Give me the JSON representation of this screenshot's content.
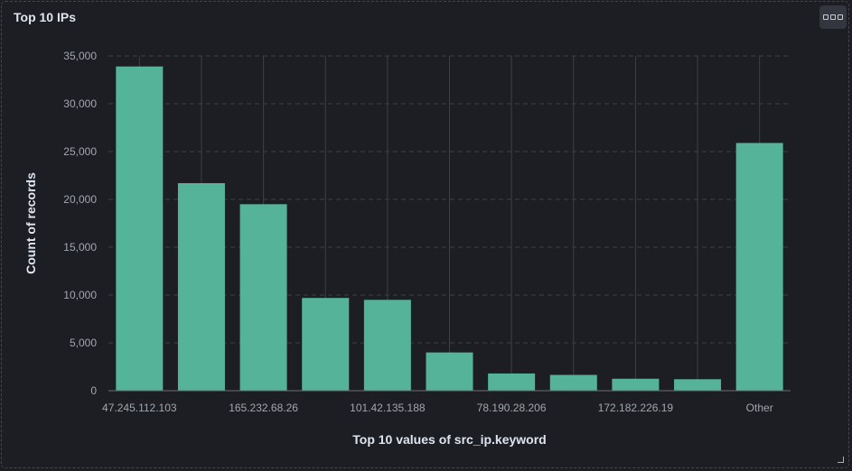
{
  "panel": {
    "title": "Top 10 IPs",
    "menu_icon": "ellipsis-icon",
    "resize_icon": "resize-corner-icon"
  },
  "colors": {
    "bar": "#54b399",
    "background": "#1d1e24",
    "grid": "#3d3f47"
  },
  "chart_data": {
    "type": "bar",
    "categories": [
      "47.245.112.103",
      "",
      "165.232.68.26",
      "",
      "101.42.135.188",
      "",
      "78.190.28.206",
      "",
      "172.182.226.19",
      "",
      "Other"
    ],
    "values": [
      33900,
      21700,
      19500,
      9700,
      9500,
      4000,
      1800,
      1650,
      1250,
      1200,
      25900
    ],
    "xlabel": "Top 10 values of src_ip.keyword",
    "ylabel": "Count of records",
    "ylim": [
      0,
      35000
    ],
    "yticks": [
      0,
      5000,
      10000,
      15000,
      20000,
      25000,
      30000,
      35000
    ],
    "ytick_labels": [
      "0",
      "5,000",
      "10,000",
      "15,000",
      "20,000",
      "25,000",
      "30,000",
      "35,000"
    ],
    "grid": true
  }
}
